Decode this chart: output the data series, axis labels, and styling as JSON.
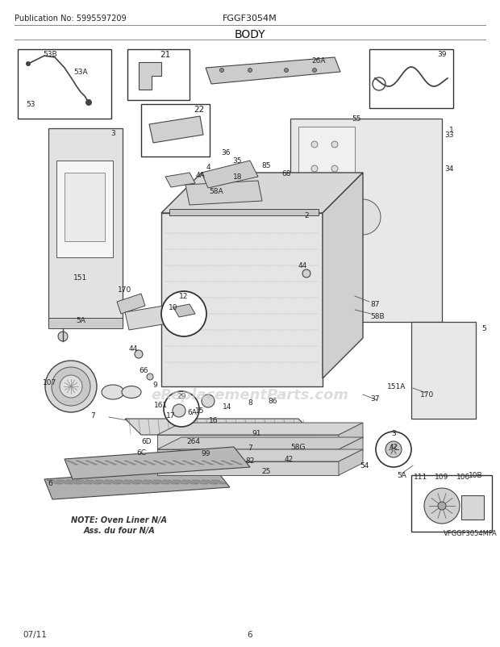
{
  "title": "BODY",
  "publication": "Publication No: 5995597209",
  "model": "FGGF3054M",
  "date": "07/11",
  "page": "6",
  "watermark": "eReplacementParts.com",
  "submodel": "VFGGF3054MFA",
  "note_line1": "NOTE: Oven Liner N/A",
  "note_line2": "Ass. du four N/A",
  "bg_color": "#ffffff",
  "line_color": "#555555",
  "dark_line": "#333333"
}
